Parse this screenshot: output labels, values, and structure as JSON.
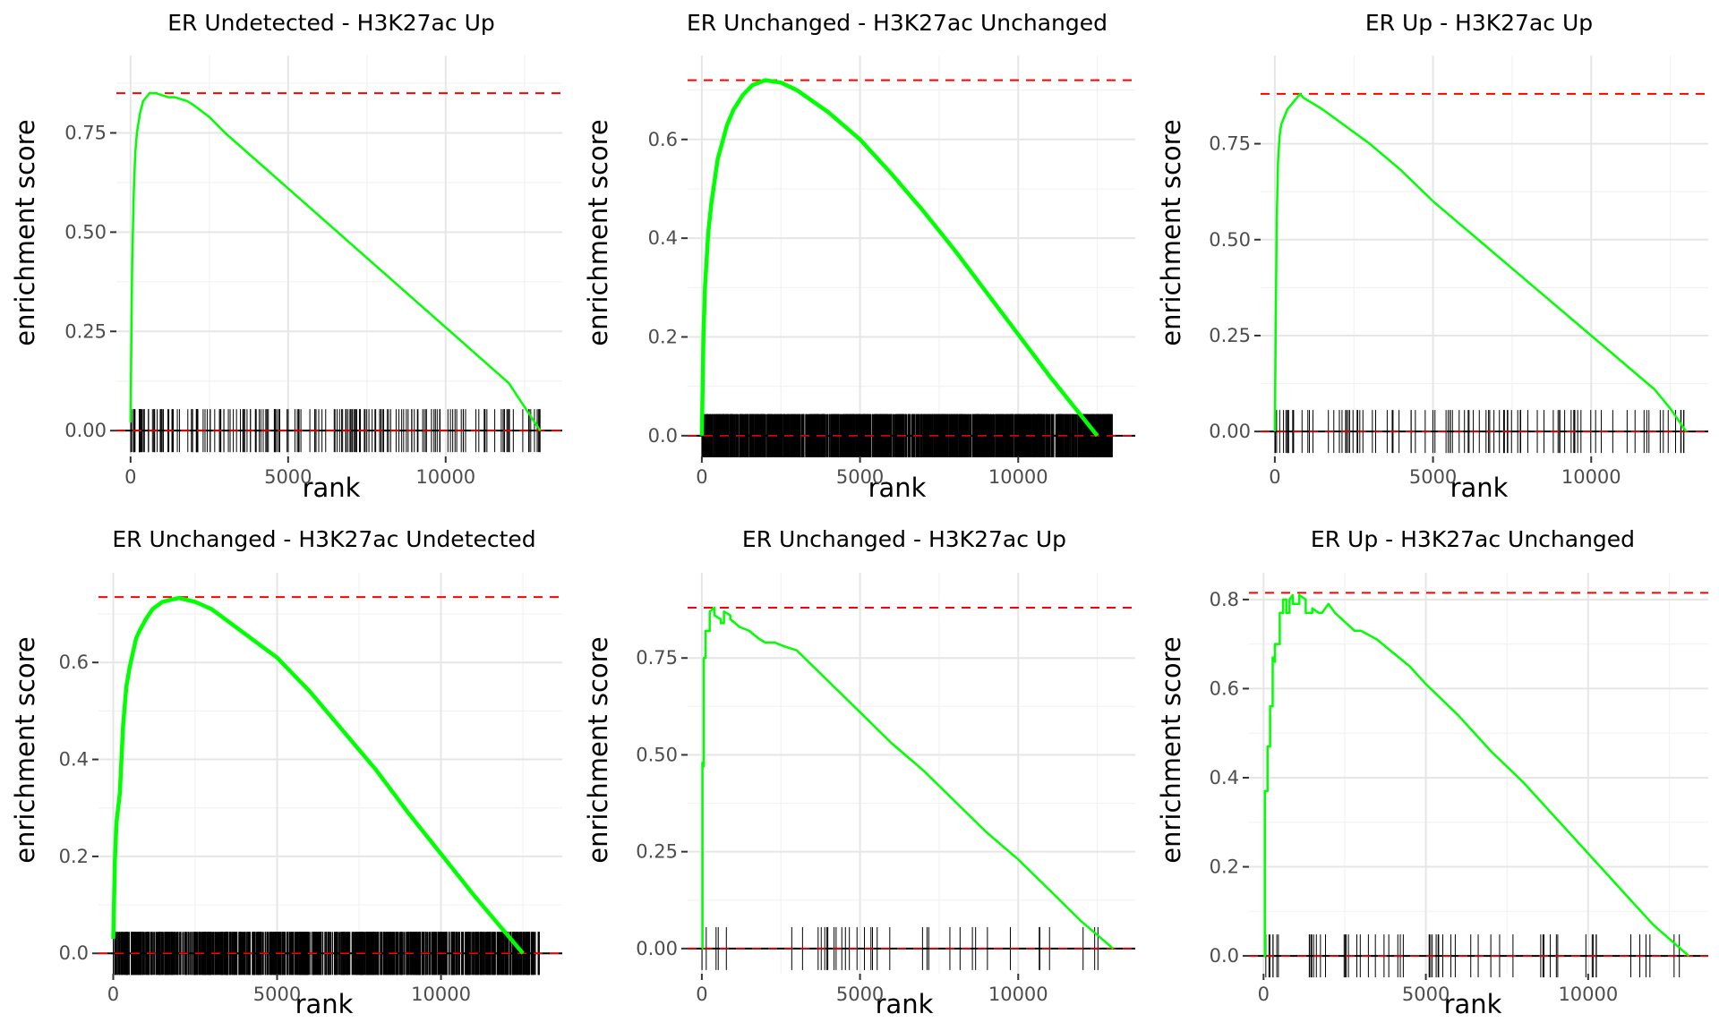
{
  "chart_data": [
    {
      "type": "line",
      "title": "ER Undetected - H3K27ac Up",
      "xlabel": "rank",
      "ylabel": "enrichment score",
      "xlim": [
        -450,
        13700
      ],
      "ylim": [
        -0.065,
        0.945
      ],
      "xticks": [
        0,
        5000,
        10000
      ],
      "xtick_labels": [
        "0",
        "5000",
        "10000"
      ],
      "yticks": [
        0,
        0.25,
        0.5,
        0.75
      ],
      "ytick_labels": [
        "0.00",
        "0.25",
        "0.50",
        "0.75"
      ],
      "max_es": 0.85,
      "max_rank": 750,
      "n_hits": 200,
      "end_rank": 13000,
      "grid": true,
      "series": [
        {
          "color": "#00ff00",
          "x": [
            0,
            20,
            50,
            100,
            150,
            200,
            300,
            400,
            500,
            600,
            700,
            800,
            1000,
            1200,
            1400,
            1600,
            1800,
            2000,
            2500,
            3000,
            4000,
            5000,
            6000,
            7000,
            8000,
            9000,
            10000,
            11000,
            12000,
            12500,
            13000
          ],
          "y": [
            0.02,
            0.18,
            0.42,
            0.6,
            0.7,
            0.75,
            0.8,
            0.83,
            0.84,
            0.85,
            0.85,
            0.85,
            0.845,
            0.84,
            0.84,
            0.835,
            0.83,
            0.82,
            0.79,
            0.75,
            0.68,
            0.61,
            0.54,
            0.47,
            0.4,
            0.33,
            0.26,
            0.19,
            0.12,
            0.06,
            0.0
          ]
        }
      ]
    },
    {
      "type": "line",
      "title": "ER Unchanged - H3K27ac Unchanged",
      "xlabel": "rank",
      "ylabel": "enrichment score",
      "xlim": [
        -450,
        13700
      ],
      "ylim": [
        -0.042,
        0.77
      ],
      "xticks": [
        0,
        5000,
        10000
      ],
      "xtick_labels": [
        "0",
        "5000",
        "10000"
      ],
      "yticks": [
        0,
        0.2,
        0.4,
        0.6
      ],
      "ytick_labels": [
        "0.0",
        "0.2",
        "0.4",
        "0.6"
      ],
      "max_es": 0.72,
      "max_rank": 2000,
      "n_hits": 2000,
      "end_rank": 12500,
      "grid": true,
      "series": [
        {
          "color": "#00ff00",
          "x": [
            0,
            50,
            100,
            200,
            300,
            500,
            800,
            1000,
            1300,
            1600,
            2000,
            2500,
            3000,
            4000,
            5000,
            6000,
            7000,
            8000,
            9000,
            10000,
            11000,
            12000,
            12500
          ],
          "y": [
            0.0,
            0.2,
            0.3,
            0.41,
            0.47,
            0.56,
            0.63,
            0.66,
            0.69,
            0.71,
            0.72,
            0.715,
            0.7,
            0.655,
            0.6,
            0.53,
            0.455,
            0.375,
            0.29,
            0.205,
            0.12,
            0.04,
            0.0
          ]
        }
      ]
    },
    {
      "type": "line",
      "title": "ER Up - H3K27ac Up",
      "xlabel": "rank",
      "ylabel": "enrichment score",
      "xlim": [
        -450,
        13700
      ],
      "ylim": [
        -0.065,
        0.98
      ],
      "xticks": [
        0,
        5000,
        10000
      ],
      "xtick_labels": [
        "0",
        "5000",
        "10000"
      ],
      "yticks": [
        0,
        0.25,
        0.5,
        0.75
      ],
      "ytick_labels": [
        "0.00",
        "0.25",
        "0.50",
        "0.75"
      ],
      "max_es": 0.88,
      "max_rank": 800,
      "n_hits": 100,
      "end_rank": 13000,
      "grid": true,
      "series": [
        {
          "color": "#00ff00",
          "x": [
            0,
            30,
            60,
            100,
            150,
            200,
            300,
            400,
            500,
            600,
            700,
            800,
            900,
            1000,
            1200,
            1500,
            2000,
            2500,
            3000,
            4000,
            5000,
            6000,
            7000,
            8000,
            9000,
            10000,
            11000,
            12000,
            12500,
            13000
          ],
          "y": [
            0.0,
            0.3,
            0.55,
            0.7,
            0.77,
            0.8,
            0.82,
            0.84,
            0.85,
            0.86,
            0.87,
            0.88,
            0.87,
            0.865,
            0.855,
            0.84,
            0.81,
            0.78,
            0.75,
            0.68,
            0.6,
            0.53,
            0.46,
            0.39,
            0.32,
            0.25,
            0.18,
            0.11,
            0.06,
            0.0
          ]
        }
      ]
    },
    {
      "type": "line",
      "title": "ER Unchanged - H3K27ac Undetected",
      "xlabel": "rank",
      "ylabel": "enrichment score",
      "xlim": [
        -450,
        13700
      ],
      "ylim": [
        -0.042,
        0.785
      ],
      "xticks": [
        0,
        5000,
        10000
      ],
      "xtick_labels": [
        "0",
        "5000",
        "10000"
      ],
      "yticks": [
        0,
        0.2,
        0.4,
        0.6
      ],
      "ytick_labels": [
        "0.0",
        "0.2",
        "0.4",
        "0.6"
      ],
      "max_es": 0.735,
      "max_rank": 2000,
      "n_hits": 1200,
      "end_rank": 12500,
      "grid": true,
      "series": [
        {
          "color": "#00ff00",
          "x": [
            0,
            50,
            100,
            200,
            300,
            400,
            500,
            600,
            700,
            800,
            1000,
            1200,
            1500,
            1800,
            2000,
            2500,
            3000,
            4000,
            5000,
            6000,
            7000,
            8000,
            9000,
            10000,
            11000,
            12000,
            12500
          ],
          "y": [
            0.03,
            0.19,
            0.27,
            0.33,
            0.47,
            0.55,
            0.59,
            0.62,
            0.65,
            0.665,
            0.69,
            0.71,
            0.725,
            0.73,
            0.733,
            0.725,
            0.71,
            0.66,
            0.61,
            0.54,
            0.46,
            0.38,
            0.29,
            0.205,
            0.12,
            0.04,
            0.0
          ]
        }
      ]
    },
    {
      "type": "line",
      "title": "ER Unchanged - H3K27ac Up",
      "xlabel": "rank",
      "ylabel": "enrichment score",
      "xlim": [
        -450,
        13700
      ],
      "ylim": [
        -0.065,
        0.97
      ],
      "xticks": [
        0,
        5000,
        10000
      ],
      "xtick_labels": [
        "0",
        "5000",
        "10000"
      ],
      "yticks": [
        0,
        0.25,
        0.5,
        0.75
      ],
      "ytick_labels": [
        "0.00",
        "0.25",
        "0.50",
        "0.75"
      ],
      "max_es": 0.88,
      "max_rank": 400,
      "n_hits": 38,
      "end_rank": 13000,
      "grid": true,
      "series": [
        {
          "color": "#00ff00",
          "x": [
            0,
            20,
            20,
            60,
            60,
            120,
            120,
            250,
            250,
            400,
            400,
            600,
            600,
            700,
            700,
            900,
            900,
            1200,
            1500,
            1800,
            2000,
            2300,
            2600,
            3000,
            4000,
            5000,
            6000,
            7000,
            8000,
            9000,
            10000,
            11000,
            12000,
            13000
          ],
          "y": [
            0.0,
            0.0,
            0.48,
            0.47,
            0.75,
            0.75,
            0.82,
            0.82,
            0.87,
            0.88,
            0.86,
            0.85,
            0.84,
            0.84,
            0.87,
            0.86,
            0.85,
            0.83,
            0.82,
            0.8,
            0.79,
            0.79,
            0.78,
            0.77,
            0.69,
            0.61,
            0.53,
            0.46,
            0.38,
            0.3,
            0.23,
            0.15,
            0.07,
            0.0
          ]
        }
      ]
    },
    {
      "type": "line",
      "title": "ER Up - H3K27ac Unchanged",
      "xlabel": "rank",
      "ylabel": "enrichment score",
      "xlim": [
        -450,
        13700
      ],
      "ylim": [
        -0.04,
        0.86
      ],
      "xticks": [
        0,
        5000,
        10000
      ],
      "xtick_labels": [
        "0",
        "5000",
        "10000"
      ],
      "yticks": [
        0,
        0.2,
        0.4,
        0.6,
        0.8
      ],
      "ytick_labels": [
        "0.0",
        "0.2",
        "0.4",
        "0.6",
        "0.8"
      ],
      "max_es": 0.815,
      "max_rank": 900,
      "n_hits": 60,
      "end_rank": 13100,
      "grid": true,
      "series": [
        {
          "color": "#00ff00",
          "x": [
            0,
            40,
            40,
            120,
            120,
            200,
            200,
            280,
            280,
            350,
            350,
            500,
            500,
            600,
            600,
            700,
            700,
            800,
            800,
            900,
            900,
            1100,
            1100,
            1300,
            1300,
            1500,
            1500,
            1700,
            1800,
            1900,
            2000,
            2200,
            2500,
            2800,
            3000,
            3500,
            4000,
            4500,
            5000,
            6000,
            7000,
            8000,
            9000,
            10000,
            11000,
            12000,
            13100
          ],
          "y": [
            0.0,
            0.0,
            0.37,
            0.37,
            0.47,
            0.47,
            0.56,
            0.56,
            0.67,
            0.66,
            0.7,
            0.7,
            0.77,
            0.77,
            0.8,
            0.8,
            0.77,
            0.77,
            0.8,
            0.81,
            0.79,
            0.79,
            0.81,
            0.8,
            0.77,
            0.77,
            0.78,
            0.77,
            0.77,
            0.78,
            0.79,
            0.77,
            0.75,
            0.73,
            0.73,
            0.71,
            0.68,
            0.65,
            0.61,
            0.54,
            0.46,
            0.39,
            0.31,
            0.23,
            0.15,
            0.07,
            0.0
          ]
        }
      ]
    }
  ]
}
